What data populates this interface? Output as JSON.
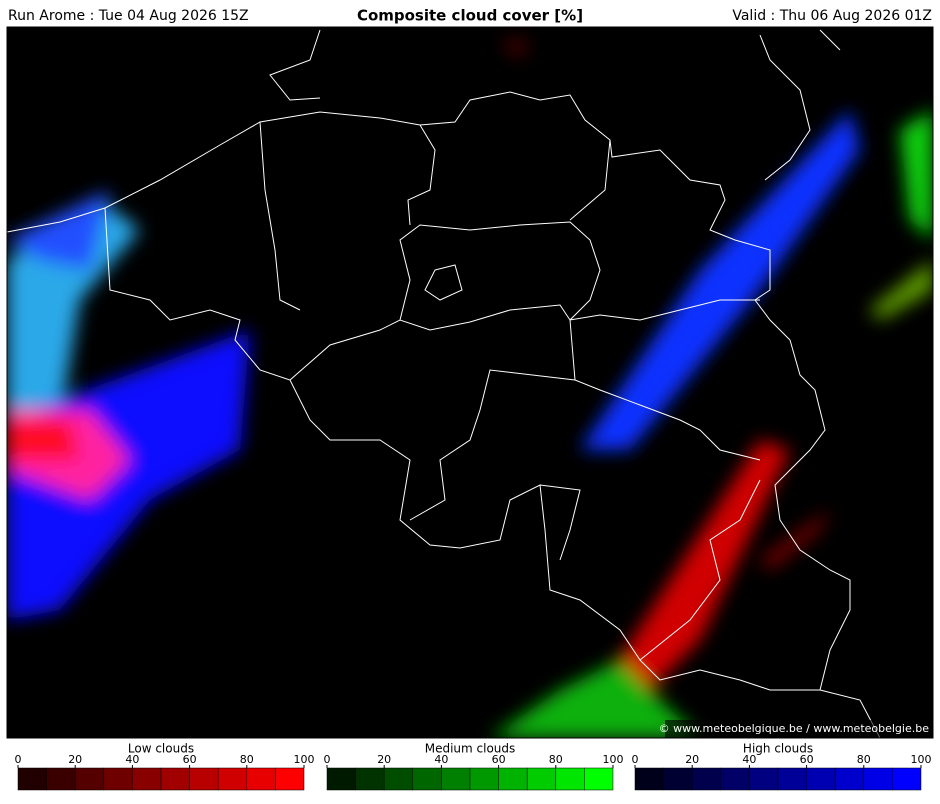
{
  "header": {
    "run": "Run Arome : Tue 04 Aug 2026 15Z",
    "title": "Composite cloud cover [%]",
    "valid": "Valid : Thu 06 Aug 2026 01Z"
  },
  "copyright": "© www.meteobelgique.be / www.meteobelgie.be",
  "legends": [
    {
      "title": "Low clouds",
      "ticks": [
        0,
        20,
        40,
        60,
        80,
        100
      ],
      "colors": [
        "#200000",
        "#3a0000",
        "#540000",
        "#6e0000",
        "#880000",
        "#a00000",
        "#b80000",
        "#d00000",
        "#e80000",
        "#ff0000"
      ]
    },
    {
      "title": "Medium clouds",
      "ticks": [
        0,
        20,
        40,
        60,
        80,
        100
      ],
      "colors": [
        "#001a00",
        "#003300",
        "#004d00",
        "#006600",
        "#008000",
        "#009900",
        "#00b300",
        "#00cc00",
        "#00e600",
        "#00ff00"
      ]
    },
    {
      "title": "High clouds",
      "ticks": [
        0,
        20,
        40,
        60,
        80,
        100
      ],
      "colors": [
        "#00001a",
        "#000033",
        "#00004d",
        "#000066",
        "#000080",
        "#000099",
        "#0000b3",
        "#0000cc",
        "#0000e6",
        "#0000ff"
      ]
    }
  ]
}
